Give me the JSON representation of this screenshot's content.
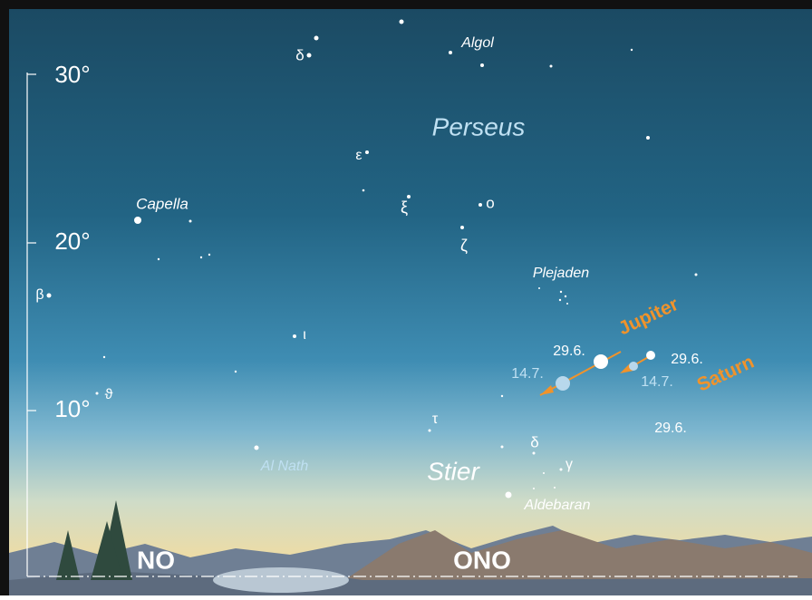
{
  "altitude": {
    "ticks": [
      "30°",
      "20°",
      "10°"
    ]
  },
  "stars": {
    "algol": "Algol",
    "delta_per": "δ",
    "epsilon": "ε",
    "xi": "ξ",
    "omicron": "ο",
    "zeta": "ζ",
    "capella": "Capella",
    "beta": "β",
    "plejaden": "Plejaden",
    "iota": "ι",
    "theta": "ϑ",
    "tau": "τ",
    "delta_tau": "δ",
    "gamma": "γ",
    "alnath": "Al Nath",
    "aldebaran": "Aldebaran"
  },
  "constellations": {
    "perseus": "Perseus",
    "stier": "Stier"
  },
  "planets": {
    "jupiter": {
      "name": "Jupiter",
      "date_late": "29.6.",
      "date_early": "14.7."
    },
    "saturn": {
      "name": "Saturn",
      "date_late": "29.6.",
      "date_early": "14.7."
    },
    "moon": {
      "date": "29.6."
    }
  },
  "directions": [
    "NO",
    "ONO"
  ]
}
